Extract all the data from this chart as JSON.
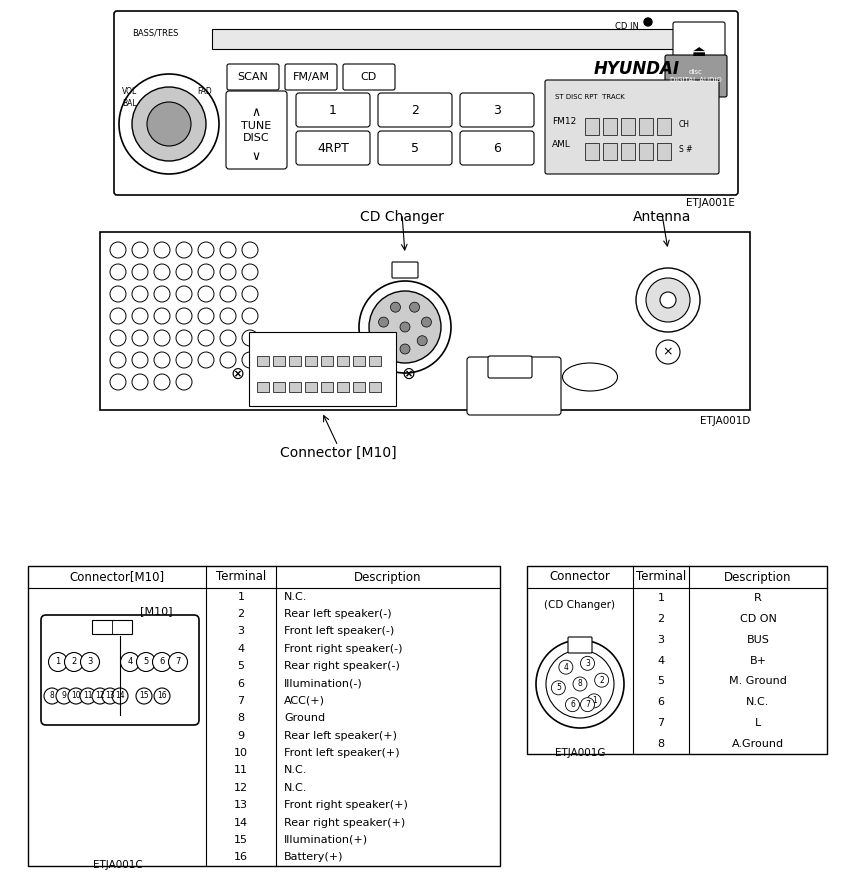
{
  "bg_color": "#ffffff",
  "radio_front_code": "ETJA001E",
  "radio_back_code": "ETJA001D",
  "m10_code": "ETJA001C",
  "cd_changer_code": "ETJA001G",
  "bass_label": "BASS/TRES",
  "vol_label": "VOL",
  "bal_label": "BAL",
  "fad_label": "FAD",
  "cd_in_label": "CD IN",
  "brand_label": "HYUNDAI",
  "tune_label": "TUNE\nDISC",
  "scan_btn": "SCAN",
  "fmam_btn": "FM/AM",
  "cd_btn": "CD",
  "preset_top": [
    "1",
    "2",
    "3"
  ],
  "preset_bot": [
    "4RPT",
    "5",
    "6"
  ],
  "disp_line1": "ST DISC RPT  TRACK",
  "disp_fm": "FM12",
  "disp_aml": "AML",
  "disp_ch": "CH",
  "disp_sb": "S #",
  "cd_changer_label": "CD Changer",
  "antenna_label": "Antenna",
  "connector_m10_label": "Connector [M10]",
  "m10_header": [
    "Connector[M10]",
    "Terminal",
    "Description"
  ],
  "m10_terminals": [
    1,
    2,
    3,
    4,
    5,
    6,
    7,
    8,
    9,
    10,
    11,
    12,
    13,
    14,
    15,
    16
  ],
  "m10_descriptions": [
    "N.C.",
    "Rear left speaker(-)",
    "Front left speaker(-)",
    "Front right speaker(-)",
    "Rear right speaker(-)",
    "Illumination(-)",
    "ACC(+)",
    "Ground",
    "Rear left speaker(+)",
    "Front left speaker(+)",
    "N.C.",
    "N.C.",
    "Front right speaker(+)",
    "Rear right speaker(+)",
    "Illumination(+)",
    "Battery(+)"
  ],
  "m10_connector_label": "[M10]",
  "cd_header": [
    "Connector",
    "Terminal",
    "Description"
  ],
  "cd_connector_name": "(CD Changer)",
  "cd_terminals": [
    1,
    2,
    3,
    4,
    5,
    6,
    7,
    8
  ],
  "cd_descriptions": [
    "R",
    "CD ON",
    "BUS",
    "B+",
    "M. Ground",
    "N.C.",
    "L",
    "A.Ground"
  ]
}
